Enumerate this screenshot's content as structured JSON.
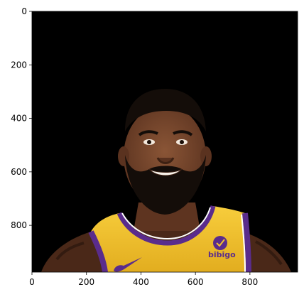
{
  "image_axes": {
    "x_ticks": [
      0,
      200,
      400,
      600,
      800
    ],
    "y_ticks": [
      0,
      200,
      400,
      600,
      800
    ],
    "x_range": [
      0,
      975
    ],
    "y_range": [
      0,
      975
    ],
    "background_color": "#000000"
  },
  "photo": {
    "jersey_color": "#f2c12e",
    "trim_color": "#5a2c8c",
    "skin_color": "#6b3d26",
    "hair_color": "#140d09",
    "logo_text": "bibigo"
  }
}
